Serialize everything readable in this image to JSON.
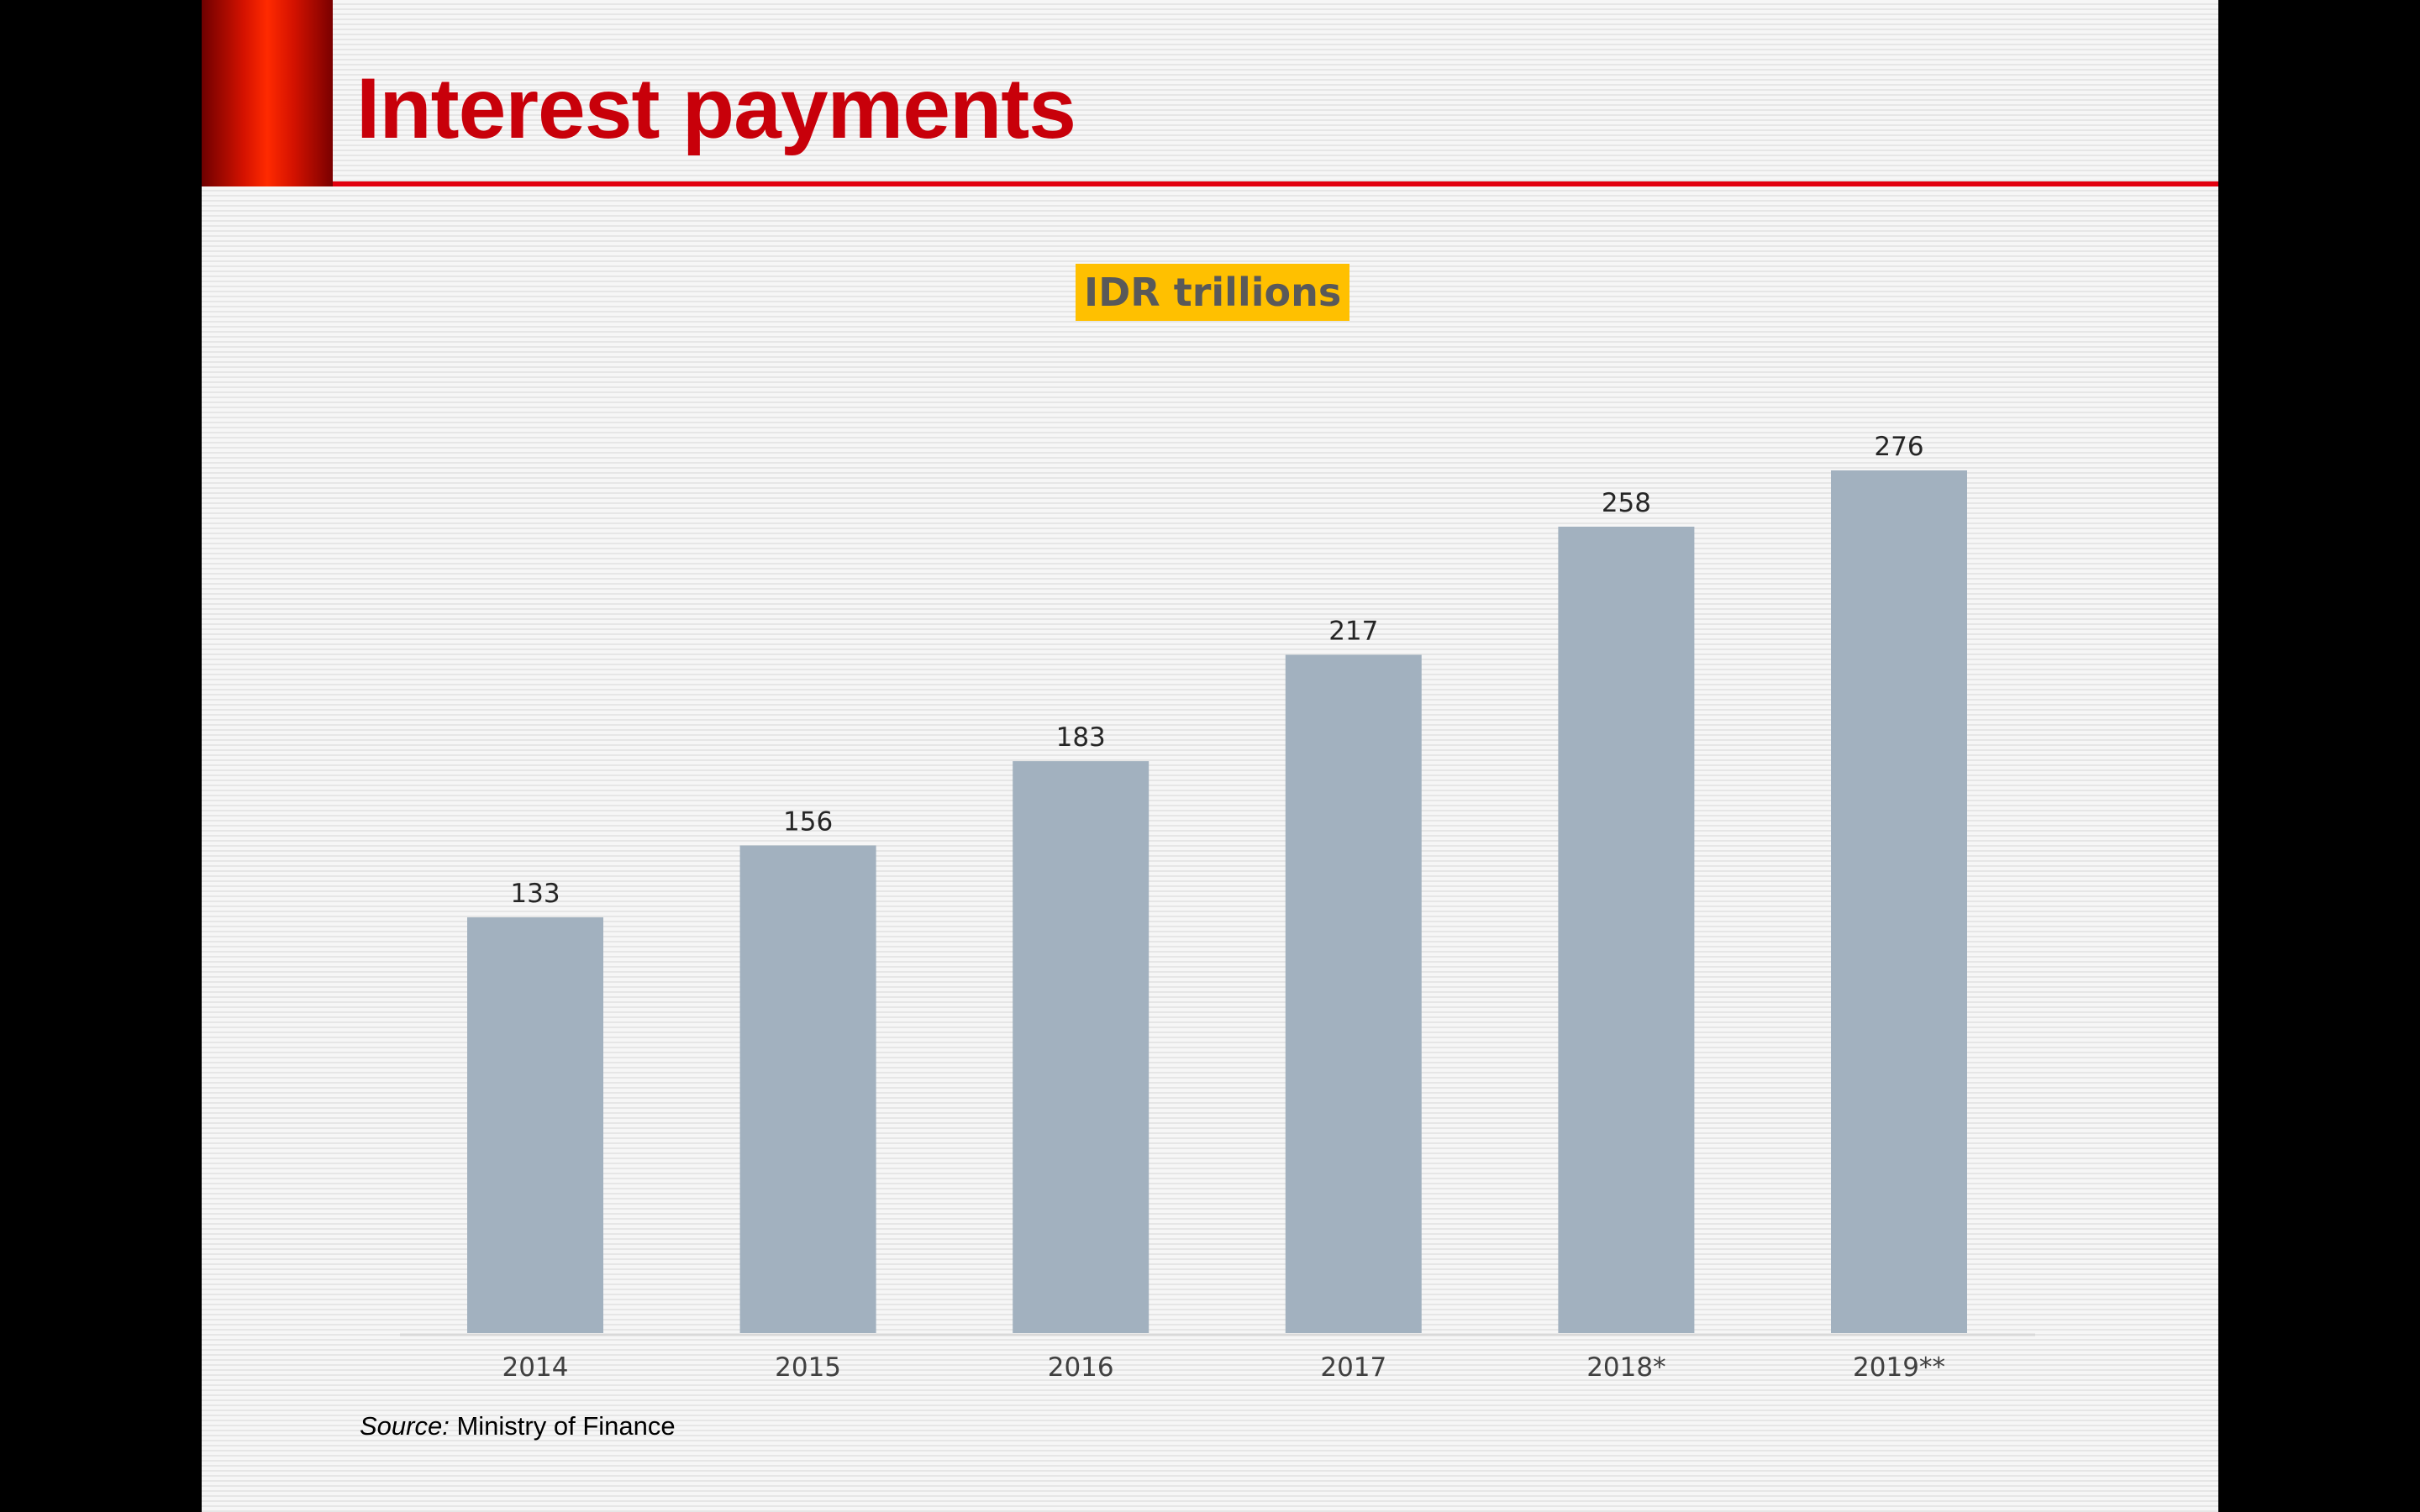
{
  "slide": {
    "title": "Interest payments",
    "accent_color": "#e2000f",
    "title_color": "#c8000a",
    "subtitle_badge_color": "#ffc000",
    "source_label": "Source:",
    "source_text": "Ministry of Finance"
  },
  "chart_data": {
    "type": "bar",
    "title": "",
    "subtitle": "IDR trillions",
    "categories": [
      "2014",
      "2015",
      "2016",
      "2017",
      "2018*",
      "2019**"
    ],
    "series": [
      {
        "values": [
          133,
          156,
          183,
          217,
          258,
          276
        ]
      }
    ],
    "data_labels": [
      "133",
      "156",
      "183",
      "217",
      "258",
      "276"
    ],
    "bar_color": "#a2b1bf",
    "xlabel": "",
    "ylabel": "",
    "ylim": [
      0,
      276
    ],
    "grid": false,
    "legend": "none"
  }
}
